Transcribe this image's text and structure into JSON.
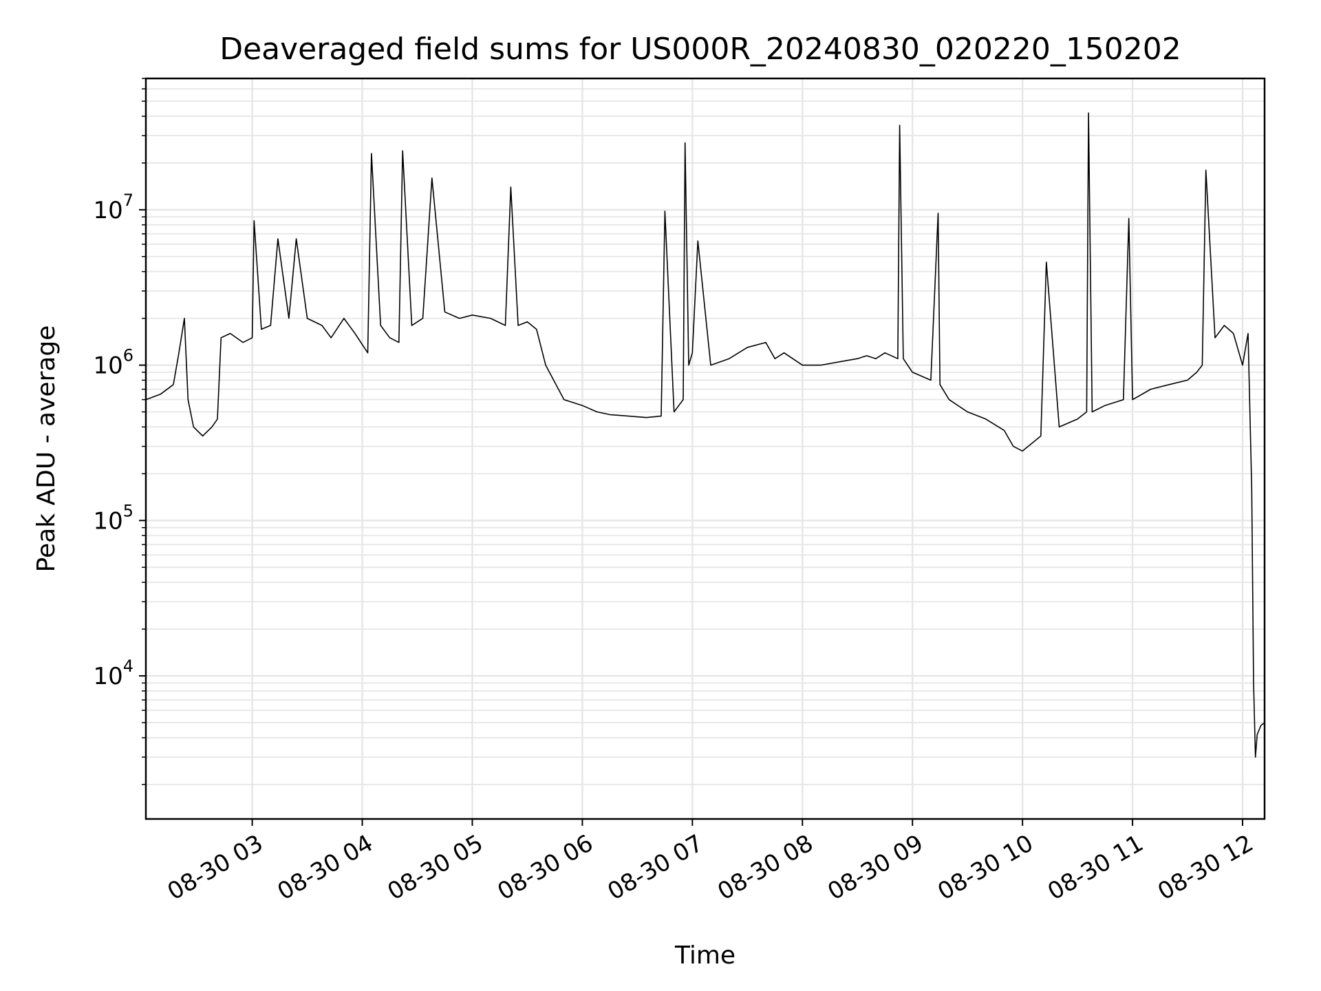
{
  "chart_data": {
    "type": "line",
    "title": "Deaveraged field sums for US000R_20240830_020220_150202",
    "xlabel": "Time",
    "ylabel": "Peak ADU - average",
    "yscale": "log",
    "grid": true,
    "legend": "none",
    "line_color": "#000000",
    "x_range": [
      "2024-08-30 02:02",
      "2024-08-30 12:12"
    ],
    "y_range": [
      1200,
      70000000
    ],
    "x_ticks": [
      "08-30 03",
      "08-30 04",
      "08-30 05",
      "08-30 06",
      "08-30 07",
      "08-30 08",
      "08-30 09",
      "08-30 10",
      "08-30 11",
      "08-30 12"
    ],
    "y_ticks": [
      {
        "base": "10",
        "exp": "4",
        "value": 10000
      },
      {
        "base": "10",
        "exp": "5",
        "value": 100000
      },
      {
        "base": "10",
        "exp": "6",
        "value": 1000000
      },
      {
        "base": "10",
        "exp": "7",
        "value": 10000000
      }
    ],
    "series": [
      {
        "x": [
          "2024-08-30 02:02",
          "2024-08-30 02:10",
          "2024-08-30 02:17",
          "2024-08-30 02:20",
          "2024-08-30 02:23",
          "2024-08-30 02:25",
          "2024-08-30 02:28",
          "2024-08-30 02:33",
          "2024-08-30 02:38",
          "2024-08-30 02:41",
          "2024-08-30 02:43",
          "2024-08-30 02:48",
          "2024-08-30 02:55",
          "2024-08-30 03:00",
          "2024-08-30 03:01",
          "2024-08-30 03:05",
          "2024-08-30 03:10",
          "2024-08-30 03:14",
          "2024-08-30 03:20",
          "2024-08-30 03:24",
          "2024-08-30 03:30",
          "2024-08-30 03:38",
          "2024-08-30 03:43",
          "2024-08-30 03:50",
          "2024-08-30 03:56",
          "2024-08-30 04:03",
          "2024-08-30 04:05",
          "2024-08-30 04:10",
          "2024-08-30 04:15",
          "2024-08-30 04:20",
          "2024-08-30 04:22",
          "2024-08-30 04:27",
          "2024-08-30 04:33",
          "2024-08-30 04:38",
          "2024-08-30 04:45",
          "2024-08-30 04:53",
          "2024-08-30 05:00",
          "2024-08-30 05:10",
          "2024-08-30 05:18",
          "2024-08-30 05:21",
          "2024-08-30 05:25",
          "2024-08-30 05:30",
          "2024-08-30 05:35",
          "2024-08-30 05:40",
          "2024-08-30 05:50",
          "2024-08-30 06:00",
          "2024-08-30 06:08",
          "2024-08-30 06:15",
          "2024-08-30 06:25",
          "2024-08-30 06:35",
          "2024-08-30 06:43",
          "2024-08-30 06:45",
          "2024-08-30 06:50",
          "2024-08-30 06:55",
          "2024-08-30 06:56",
          "2024-08-30 06:58",
          "2024-08-30 07:00",
          "2024-08-30 07:03",
          "2024-08-30 07:10",
          "2024-08-30 07:20",
          "2024-08-30 07:30",
          "2024-08-30 07:40",
          "2024-08-30 07:45",
          "2024-08-30 07:50",
          "2024-08-30 08:00",
          "2024-08-30 08:10",
          "2024-08-30 08:20",
          "2024-08-30 08:30",
          "2024-08-30 08:35",
          "2024-08-30 08:40",
          "2024-08-30 08:45",
          "2024-08-30 08:52",
          "2024-08-30 08:53",
          "2024-08-30 08:55",
          "2024-08-30 09:00",
          "2024-08-30 09:10",
          "2024-08-30 09:14",
          "2024-08-30 09:15",
          "2024-08-30 09:20",
          "2024-08-30 09:30",
          "2024-08-30 09:40",
          "2024-08-30 09:50",
          "2024-08-30 09:55",
          "2024-08-30 10:00",
          "2024-08-30 10:10",
          "2024-08-30 10:13",
          "2024-08-30 10:20",
          "2024-08-30 10:30",
          "2024-08-30 10:35",
          "2024-08-30 10:36",
          "2024-08-30 10:38",
          "2024-08-30 10:45",
          "2024-08-30 10:55",
          "2024-08-30 10:58",
          "2024-08-30 11:00",
          "2024-08-30 11:10",
          "2024-08-30 11:20",
          "2024-08-30 11:30",
          "2024-08-30 11:35",
          "2024-08-30 11:38",
          "2024-08-30 11:40",
          "2024-08-30 11:45",
          "2024-08-30 11:50",
          "2024-08-30 11:55",
          "2024-08-30 12:00",
          "2024-08-30 12:03",
          "2024-08-30 12:05",
          "2024-08-30 12:06",
          "2024-08-30 12:07",
          "2024-08-30 12:08",
          "2024-08-30 12:10",
          "2024-08-30 12:12"
        ],
        "y": [
          600000,
          650000,
          750000,
          1200000,
          2000000,
          600000,
          400000,
          350000,
          400000,
          450000,
          1500000,
          1600000,
          1400000,
          1500000,
          8500000,
          1700000,
          1800000,
          6500000,
          2000000,
          6500000,
          2000000,
          1800000,
          1500000,
          2000000,
          1600000,
          1200000,
          23000000,
          1800000,
          1500000,
          1400000,
          24000000,
          1800000,
          2000000,
          16000000,
          2200000,
          2000000,
          2100000,
          2000000,
          1800000,
          14000000,
          1800000,
          1900000,
          1700000,
          1000000,
          600000,
          550000,
          500000,
          480000,
          470000,
          460000,
          470000,
          9800000,
          500000,
          600000,
          27000000,
          1000000,
          1200000,
          6300000,
          1000000,
          1100000,
          1300000,
          1400000,
          1100000,
          1200000,
          1000000,
          1000000,
          1050000,
          1100000,
          1150000,
          1100000,
          1200000,
          1100000,
          35000000,
          1100000,
          900000,
          800000,
          9500000,
          750000,
          600000,
          500000,
          450000,
          380000,
          300000,
          280000,
          350000,
          4600000,
          400000,
          450000,
          500000,
          42000000,
          500000,
          550000,
          600000,
          8800000,
          600000,
          700000,
          750000,
          800000,
          900000,
          1000000,
          18000000,
          1500000,
          1800000,
          1600000,
          1000000,
          1600000,
          160000,
          9000,
          3000,
          4200,
          4800,
          5000
        ]
      }
    ]
  }
}
